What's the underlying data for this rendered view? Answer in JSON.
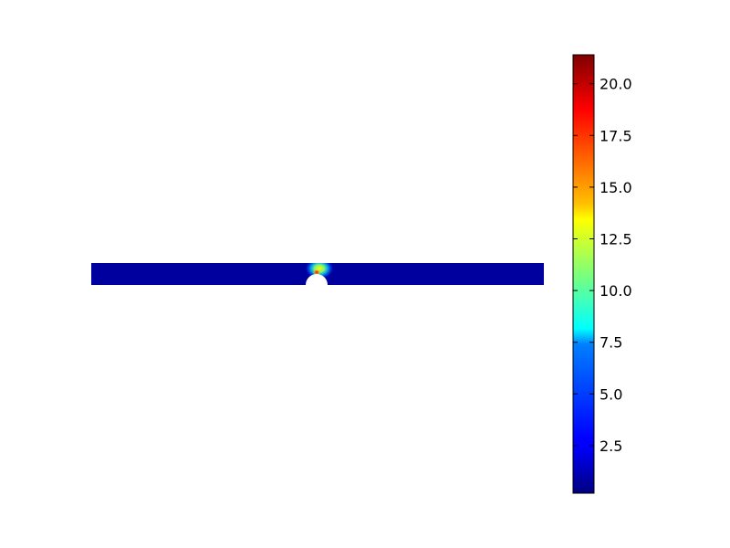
{
  "chart_data": {
    "type": "heatmap",
    "title": "",
    "xlabel": "",
    "ylabel": "",
    "colormap": "jet",
    "colorbar": {
      "min": 0.2,
      "max": 21.4,
      "ticks": [
        2.5,
        5.0,
        7.5,
        10.0,
        12.5,
        15.0,
        17.5,
        20.0
      ],
      "tick_labels": [
        "2.5",
        "5.0",
        "7.5",
        "10.0",
        "12.5",
        "15.0",
        "17.5",
        "20.0"
      ]
    },
    "field": {
      "background_value": 0.3,
      "peak_value": 21.4,
      "hole": "semicircular notch on lower edge",
      "hot_spot": "above notch"
    },
    "colors": {
      "jet_low": "#00007f",
      "jet_high": "#7f0000",
      "background": "#ffffff"
    }
  }
}
